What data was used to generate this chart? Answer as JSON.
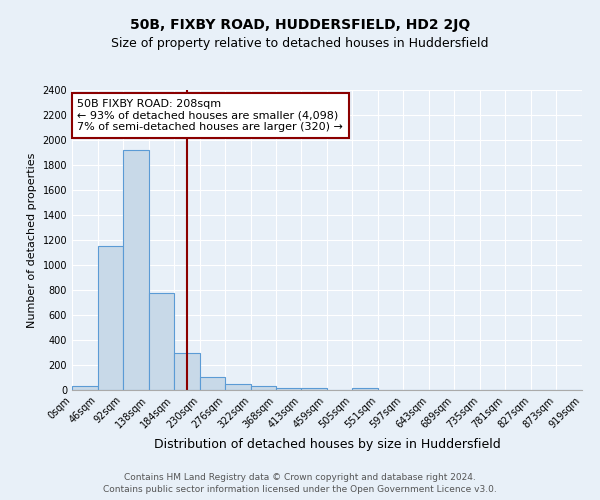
{
  "title1": "50B, FIXBY ROAD, HUDDERSFIELD, HD2 2JQ",
  "title2": "Size of property relative to detached houses in Huddersfield",
  "xlabel": "Distribution of detached houses by size in Huddersfield",
  "ylabel": "Number of detached properties",
  "bin_edges": [
    0,
    46,
    92,
    138,
    184,
    230,
    276,
    322,
    368,
    413,
    459,
    505,
    551,
    597,
    643,
    689,
    735,
    781,
    827,
    873,
    919
  ],
  "bar_heights": [
    30,
    1150,
    1920,
    780,
    300,
    105,
    45,
    30,
    20,
    15,
    0,
    15,
    0,
    0,
    0,
    0,
    0,
    0,
    0,
    0
  ],
  "bar_color": "#c8d9e8",
  "bar_edge_color": "#5b9bd5",
  "vline_x": 208,
  "vline_color": "#8B0000",
  "ylim": [
    0,
    2400
  ],
  "yticks": [
    0,
    200,
    400,
    600,
    800,
    1000,
    1200,
    1400,
    1600,
    1800,
    2000,
    2200,
    2400
  ],
  "annotation_title": "50B FIXBY ROAD: 208sqm",
  "annotation_line1": "← 93% of detached houses are smaller (4,098)",
  "annotation_line2": "7% of semi-detached houses are larger (320) →",
  "annotation_box_color": "#ffffff",
  "annotation_border_color": "#8B0000",
  "bg_color": "#e8f0f8",
  "grid_color": "#ffffff",
  "footnote1": "Contains HM Land Registry data © Crown copyright and database right 2024.",
  "footnote2": "Contains public sector information licensed under the Open Government Licence v3.0.",
  "title1_fontsize": 10,
  "title2_fontsize": 9,
  "xlabel_fontsize": 9,
  "ylabel_fontsize": 8,
  "tick_label_fontsize": 7,
  "annotation_fontsize": 8,
  "footnote_fontsize": 6.5
}
